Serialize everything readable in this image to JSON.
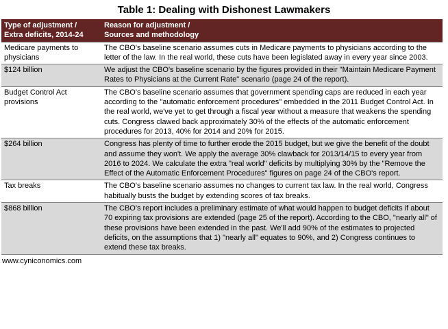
{
  "header": {
    "title": "Table 1:  Dealing with Dishonest Lawmakers"
  },
  "table": {
    "columns": [
      [
        "Type of adjustment /",
        "Extra deficits, 2014-24"
      ],
      [
        "Reason for adjustment /",
        "Sources and methodology"
      ]
    ],
    "rows": [
      [
        "Medicare payments to physicians",
        "The CBO's baseline scenario assumes cuts in Medicare payments to physicians according to the letter of the law.  In the real world, these cuts have been legislated away in every year since 2003."
      ],
      [
        "$124 billion",
        "We adjust the CBO's baseline scenario by the figures provided in their \"Maintain Medicare Payment Rates to Physicians at the Current Rate\" scenario (page 24 of the report)."
      ],
      [
        "Budget Control Act provisions",
        "The CBO's baseline scenario assumes that government spending caps are reduced in each year according to the \"automatic enforcement procedures\" embedded in the 2011 Budget Control Act.  In the real world, we've yet to get through a fiscal year without a measure that weakens the spending cuts.  Congress clawed back approximately 30% of the effects of the automatic enforcement procedures for 2013, 40% for 2014 and 20% for 2015."
      ],
      [
        "$264 billion",
        "Congress has plenty of time to further erode the 2015 budget, but we give the benefit of the doubt and assume they won't.  We apply the average 30% clawback for 2013/14/15 to every year from 2016 to 2024.  We calculate the extra \"real world\" deficits by multiplying 30% by the \"Remove the Effect of the Automatic Enforcement Procedures\" figures on page 24 of the CBO's report."
      ],
      [
        "Tax breaks",
        "The CBO's baseline scenario assumes no changes to current tax law.  In the real world, Congress habitually busts the budget by extending scores of tax breaks."
      ],
      [
        "$868 billion",
        "The CBO's report includes a preliminary estimate of what would happen to budget deficits if about 70 expiring tax provisions are extended (page 25 of the report).  According to the CBO, \"nearly all\" of these provisions have been extended in the past.  We'll add 90% of the estimates to projected deficits, on the assumptions that 1) \"nearly all\" equates to 90%, and 2) Congress continues to extend these tax breaks."
      ]
    ]
  },
  "footer": {
    "source": "www.cyniconomics.com"
  }
}
